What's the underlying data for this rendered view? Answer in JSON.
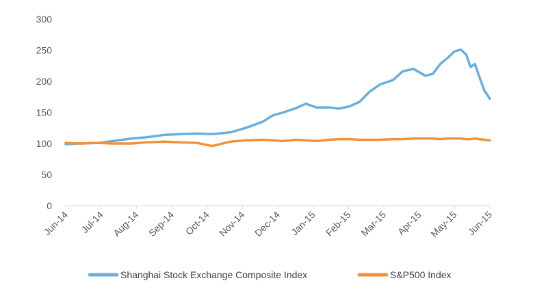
{
  "chart_data": {
    "type": "line",
    "title": "",
    "xlabel": "",
    "ylabel": "",
    "ylim": [
      0,
      300
    ],
    "yticks": [
      0,
      50,
      100,
      150,
      200,
      250,
      300
    ],
    "xlim": [
      "2014-06-01",
      "2015-06-30"
    ],
    "x_tick_labels": [
      "Jun-14",
      "Jul-14",
      "Aug-14",
      "Sep-14",
      "Oct-14",
      "Nov-14",
      "Dec-14",
      "Jan-15",
      "Feb-15",
      "Mar-15",
      "Apr-15",
      "May-15",
      "Jun-15"
    ],
    "grid": false,
    "legend_position": "bottom",
    "x": [
      "2014-06-01",
      "2014-06-15",
      "2014-07-01",
      "2014-07-15",
      "2014-08-01",
      "2014-08-15",
      "2014-09-01",
      "2014-09-15",
      "2014-10-01",
      "2014-10-15",
      "2014-11-01",
      "2014-11-15",
      "2014-12-01",
      "2014-12-10",
      "2014-12-20",
      "2015-01-01",
      "2015-01-10",
      "2015-01-20",
      "2015-02-01",
      "2015-02-10",
      "2015-02-20",
      "2015-03-01",
      "2015-03-10",
      "2015-03-20",
      "2015-04-01",
      "2015-04-10",
      "2015-04-20",
      "2015-05-01",
      "2015-05-08",
      "2015-05-15",
      "2015-05-22",
      "2015-05-28",
      "2015-06-03",
      "2015-06-08",
      "2015-06-12",
      "2015-06-16",
      "2015-06-20",
      "2015-06-25",
      "2015-06-30"
    ],
    "series": [
      {
        "name": "Shanghai Stock Exchange Composite Index",
        "color": "#6AAEDD",
        "values": [
          99,
          100,
          101,
          104,
          108,
          110,
          114,
          115,
          116,
          115,
          118,
          125,
          135,
          145,
          150,
          157,
          164,
          158,
          158,
          156,
          160,
          167,
          183,
          195,
          202,
          216,
          220,
          209,
          212,
          228,
          238,
          248,
          251,
          243,
          223,
          228,
          208,
          185,
          172
        ]
      },
      {
        "name": "S&P500 Index",
        "color": "#F1913E",
        "values": [
          101,
          100,
          101,
          100,
          100,
          102,
          103,
          102,
          101,
          96,
          103,
          105,
          106,
          105,
          104,
          106,
          105,
          104,
          106,
          107,
          107,
          106,
          106,
          106,
          107,
          107,
          108,
          108,
          108,
          107,
          108,
          108,
          108,
          107,
          107,
          108,
          107,
          106,
          105
        ]
      }
    ]
  }
}
